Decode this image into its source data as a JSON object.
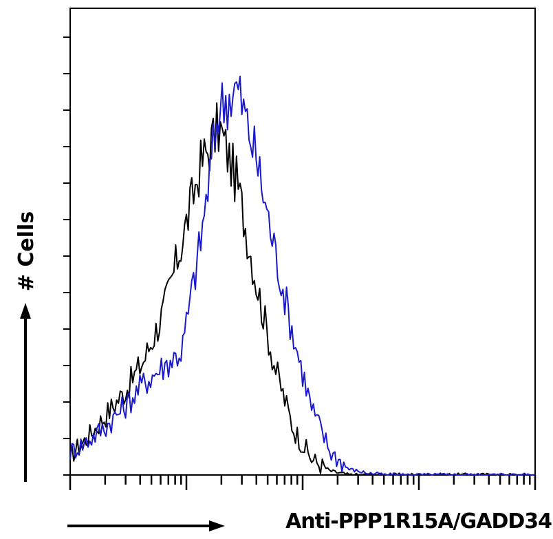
{
  "chart_data": {
    "type": "line",
    "title": "",
    "xlabel": "Anti-PPP1R15A/GADD34",
    "ylabel": "# Cells",
    "x_scale": "log",
    "grid": false,
    "legend": "none",
    "x": [
      0.0,
      0.04,
      0.08,
      0.12,
      0.16,
      0.2,
      0.24,
      0.28,
      0.32,
      0.36,
      0.4,
      0.44,
      0.48,
      0.52,
      0.56,
      0.6,
      0.64,
      0.68,
      0.72,
      0.76,
      0.8,
      0.84,
      0.88,
      0.92,
      0.96,
      1.0
    ],
    "series": [
      {
        "color": "#000000",
        "values": [
          0.05,
          0.1,
          0.16,
          0.22,
          0.3,
          0.42,
          0.6,
          0.8,
          0.9,
          0.75,
          0.5,
          0.28,
          0.12,
          0.04,
          0.01,
          0.0,
          0.0,
          0.0,
          0.0,
          0.0,
          0.0,
          0.0,
          0.0,
          0.0,
          0.0,
          0.0
        ]
      },
      {
        "color": "#1a1acc",
        "values": [
          0.06,
          0.09,
          0.13,
          0.18,
          0.24,
          0.28,
          0.32,
          0.6,
          0.95,
          1.0,
          0.82,
          0.58,
          0.36,
          0.17,
          0.06,
          0.015,
          0.005,
          0.0,
          0.0,
          0.0,
          0.0,
          0.0,
          0.0,
          0.0,
          0.0,
          0.0
        ]
      }
    ]
  }
}
